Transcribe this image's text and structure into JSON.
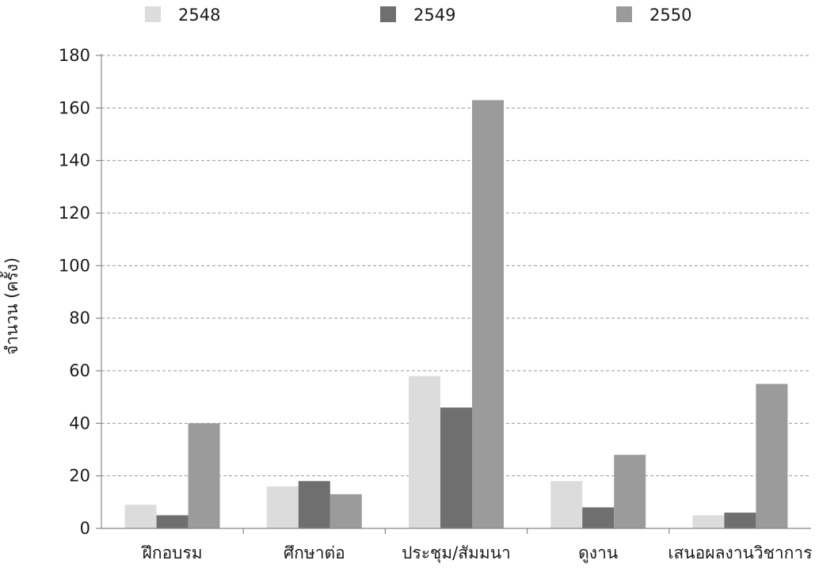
{
  "chart_data": {
    "type": "bar",
    "categories": [
      "ฝึกอบรม",
      "ศึกษาต่อ",
      "ประชุม/สัมมนา",
      "ดูงาน",
      "เสนอผลงานวิชาการ"
    ],
    "series": [
      {
        "name": "2548",
        "values": [
          9,
          16,
          58,
          18,
          5
        ],
        "color": "#dcdcdc"
      },
      {
        "name": "2549",
        "values": [
          5,
          18,
          46,
          8,
          6
        ],
        "color": "#6f6f6f"
      },
      {
        "name": "2550",
        "values": [
          40,
          13,
          163,
          28,
          55
        ],
        "color": "#9b9b9b"
      }
    ],
    "ylabel": "จำนวน (ครั้ง)",
    "ylim": [
      0,
      180
    ],
    "yticks": [
      0,
      20,
      40,
      60,
      80,
      100,
      120,
      140,
      160,
      180
    ],
    "grid": true,
    "legend_position": "top"
  }
}
